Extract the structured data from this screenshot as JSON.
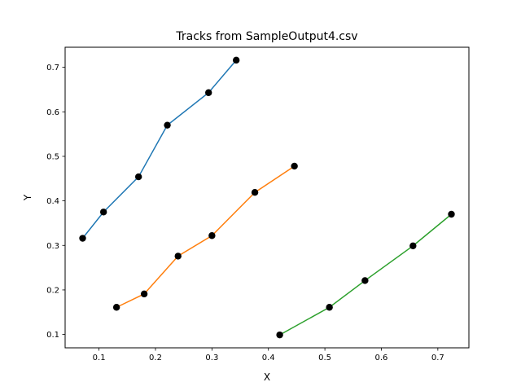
{
  "chart_data": {
    "type": "line",
    "title": "Tracks from SampleOutput4.csv",
    "xlabel": "X",
    "ylabel": "Y",
    "xlim": [
      0.04,
      0.755
    ],
    "ylim": [
      0.07,
      0.745
    ],
    "xticks": [
      0.1,
      0.2,
      0.3,
      0.4,
      0.5,
      0.6,
      0.7
    ],
    "yticks": [
      0.1,
      0.2,
      0.3,
      0.4,
      0.5,
      0.6,
      0.7
    ],
    "grid": false,
    "marker_color": "#000000",
    "series": [
      {
        "color": "#1f77b4",
        "x": [
          0.071,
          0.108,
          0.17,
          0.221,
          0.294,
          0.343
        ],
        "y": [
          0.316,
          0.375,
          0.454,
          0.57,
          0.643,
          0.716
        ]
      },
      {
        "color": "#ff7f0e",
        "x": [
          0.131,
          0.18,
          0.24,
          0.3,
          0.376,
          0.446
        ],
        "y": [
          0.161,
          0.191,
          0.276,
          0.322,
          0.419,
          0.478
        ]
      },
      {
        "color": "#2ca02c",
        "x": [
          0.42,
          0.508,
          0.571,
          0.656,
          0.724
        ],
        "y": [
          0.099,
          0.161,
          0.221,
          0.299,
          0.37
        ]
      }
    ]
  }
}
